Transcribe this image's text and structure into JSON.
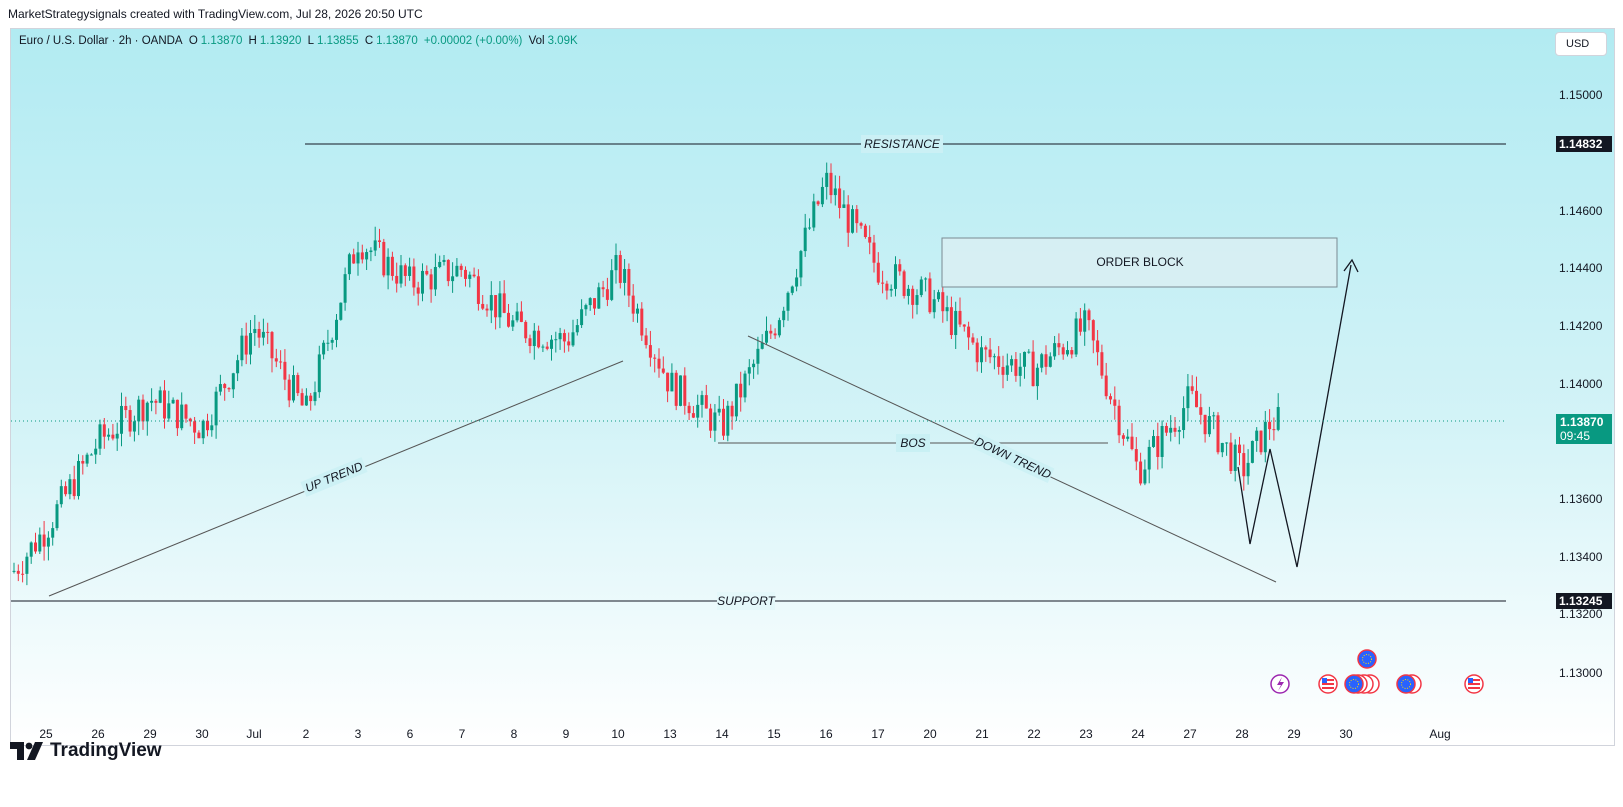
{
  "header": {
    "credit": "MarketStrategysignals created with TradingView.com, Jul 28, 2026 20:50 UTC"
  },
  "symbol": {
    "name": "Euro / U.S. Dollar · 2h · OANDA",
    "open_label": "O",
    "open": "1.13870",
    "high_label": "H",
    "high": "1.13920",
    "low_label": "L",
    "low": "1.13855",
    "close_label": "C",
    "close": "1.13870",
    "change": "+0.00002 (+0.00%)",
    "vol_label": "Vol",
    "vol": "3.09K"
  },
  "currency": "USD",
  "price_axis": [
    "1.15000",
    "1.14600",
    "1.14400",
    "1.14200",
    "1.14000",
    "1.13600",
    "1.13400",
    "1.13200",
    "1.13000"
  ],
  "time_axis": [
    "25",
    "26",
    "29",
    "30",
    "Jul",
    "2",
    "3",
    "6",
    "7",
    "8",
    "9",
    "10",
    "13",
    "14",
    "15",
    "16",
    "17",
    "20",
    "21",
    "22",
    "23",
    "24",
    "27",
    "28",
    "29",
    "30",
    "Aug"
  ],
  "tags": {
    "resistance_price": "1.14832",
    "current_price": "1.13870",
    "countdown": "09:45",
    "support_price": "1.13245"
  },
  "annotations": {
    "resistance": "RESISTANCE",
    "support": "SUPPORT",
    "order_block": "ORDER BLOCK",
    "bos": "BOS",
    "up_trend": "UP TREND",
    "down_trend": "DOWN TREND"
  },
  "colors": {
    "up": "#089981",
    "down": "#f23645",
    "background_top": "#b2ebf2",
    "current_tag": "#089981"
  },
  "footer": {
    "logo": "TradingView"
  },
  "chart_data": {
    "type": "candlestick",
    "instrument": "EUR/USD",
    "ylim": [
      1.1293,
      1.1517
    ],
    "levels": {
      "resistance": 1.14832,
      "support": 1.13245,
      "current": 1.1387
    },
    "order_block": [
      1.1433,
      1.145
    ],
    "close_path_by_day": [
      {
        "day": "25",
        "close": 1.135
      },
      {
        "day": "26",
        "close": 1.138
      },
      {
        "day": "29",
        "close": 1.1395
      },
      {
        "day": "30",
        "close": 1.1385
      },
      {
        "day": "Jul",
        "close": 1.142
      },
      {
        "day": "2",
        "close": 1.139
      },
      {
        "day": "3",
        "close": 1.145
      },
      {
        "day": "6",
        "close": 1.1435
      },
      {
        "day": "7",
        "close": 1.144
      },
      {
        "day": "8",
        "close": 1.142
      },
      {
        "day": "9",
        "close": 1.1415
      },
      {
        "day": "10",
        "close": 1.144
      },
      {
        "day": "13",
        "close": 1.14
      },
      {
        "day": "14",
        "close": 1.1385
      },
      {
        "day": "15",
        "close": 1.142
      },
      {
        "day": "16",
        "close": 1.147
      },
      {
        "day": "17",
        "close": 1.144
      },
      {
        "day": "20",
        "close": 1.143
      },
      {
        "day": "21",
        "close": 1.141
      },
      {
        "day": "22",
        "close": 1.1405
      },
      {
        "day": "23",
        "close": 1.142
      },
      {
        "day": "24",
        "close": 1.137
      },
      {
        "day": "27",
        "close": 1.1395
      },
      {
        "day": "28",
        "close": 1.137
      },
      {
        "day": "29",
        "close": 1.1387
      }
    ]
  }
}
